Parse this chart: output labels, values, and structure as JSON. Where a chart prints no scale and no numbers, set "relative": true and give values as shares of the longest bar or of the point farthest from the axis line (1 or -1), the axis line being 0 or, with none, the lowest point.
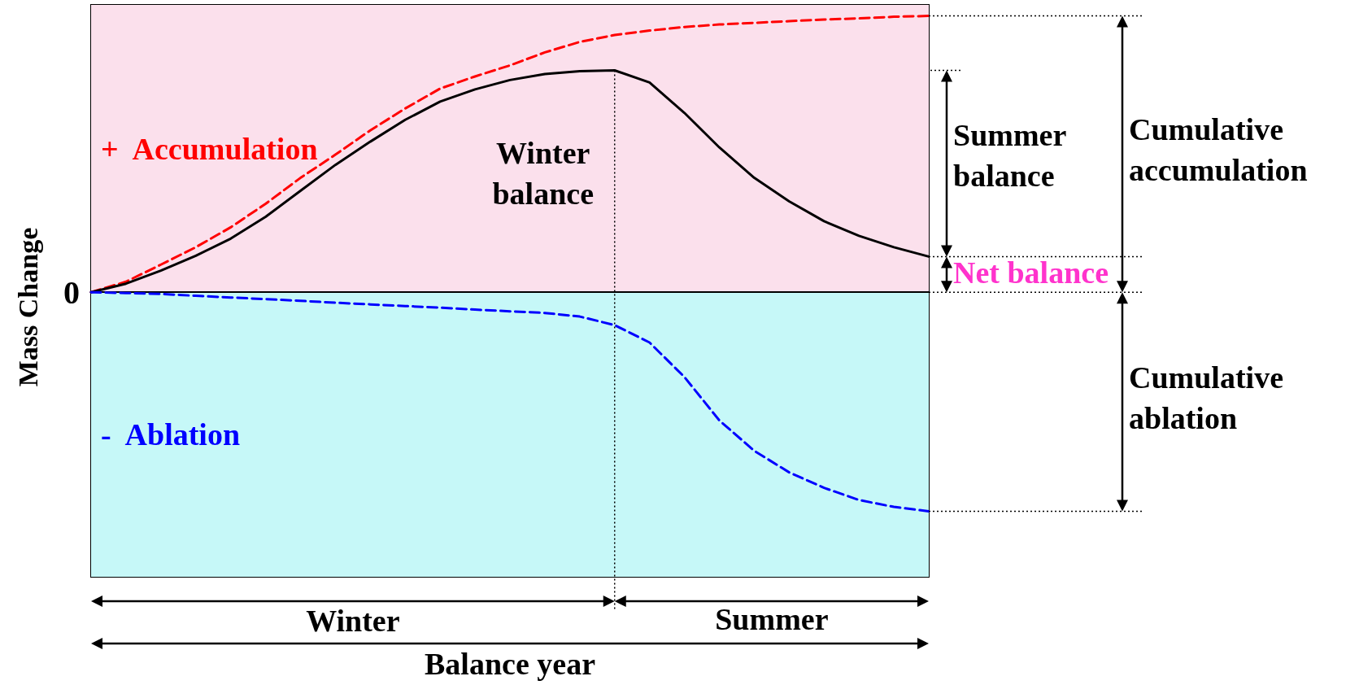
{
  "chart_data": {
    "type": "line",
    "relative": true,
    "xlabel": "Balance year",
    "ylabel": "Mass Change",
    "marker": "none",
    "grid": false,
    "categories": [
      null,
      null,
      null,
      null,
      null,
      null,
      null,
      null,
      null,
      null,
      null,
      null,
      null,
      null,
      null,
      null,
      null,
      null,
      null,
      null,
      null,
      null,
      null,
      null,
      null
    ],
    "series": [
      {
        "color": "#ff0000",
        "line_style": "dashed",
        "values": [
          0,
          0.038,
          0.1,
          0.163,
          0.235,
          0.32,
          0.414,
          0.498,
          0.586,
          0.665,
          0.737,
          0.781,
          0.821,
          0.868,
          0.906,
          0.931,
          0.947,
          0.96,
          0.969,
          0.975,
          0.981,
          0.987,
          0.991,
          0.997,
          1
        ]
      },
      {
        "color": "#000000",
        "line_style": "solid",
        "values": [
          0,
          0.031,
          0.078,
          0.132,
          0.194,
          0.273,
          0.367,
          0.461,
          0.545,
          0.624,
          0.69,
          0.734,
          0.768,
          0.79,
          0.8,
          0.803,
          0.759,
          0.649,
          0.524,
          0.414,
          0.329,
          0.257,
          0.204,
          0.163,
          0.129
        ]
      },
      {
        "color": "#0000ff",
        "line_style": "dashed",
        "values": [
          0,
          -0.003,
          -0.006,
          -0.013,
          -0.019,
          -0.025,
          -0.031,
          -0.038,
          -0.044,
          -0.05,
          -0.056,
          -0.063,
          -0.069,
          -0.075,
          -0.088,
          -0.119,
          -0.182,
          -0.307,
          -0.464,
          -0.574,
          -0.652,
          -0.708,
          -0.752,
          -0.777,
          -0.793
        ]
      }
    ],
    "bands": [
      {
        "axis": "y",
        "from": 0,
        "to": 1.04,
        "label": "+  Accumulation",
        "color": "#fbe0ec"
      },
      {
        "axis": "y",
        "from": -1.03,
        "to": 0,
        "label": "-  Ablation",
        "color": "#c6f8f8"
      }
    ],
    "ref_lines": [
      {
        "axis": "y",
        "value": 0,
        "label": "0",
        "color": "#000000",
        "line_style": "solid"
      }
    ],
    "annotations": [
      "Winter\nbalance",
      "Summer\nbalance",
      "Net balance",
      "Cumulative\naccumulation",
      "Cumulative\nablation",
      "Winter",
      "Summer"
    ]
  }
}
